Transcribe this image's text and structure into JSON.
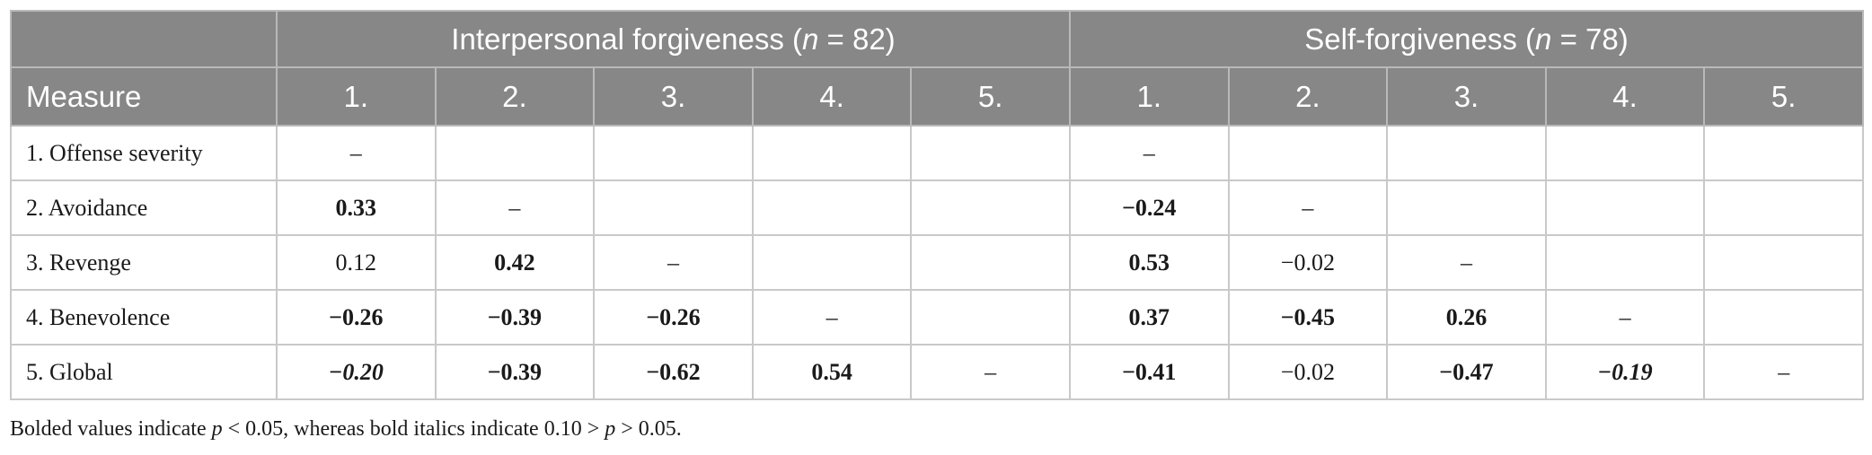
{
  "table": {
    "groups": [
      {
        "label_prefix": "Interpersonal forgiveness (",
        "n_symbol": "n",
        "label_suffix": " = 82)"
      },
      {
        "label_prefix": "Self-forgiveness (",
        "n_symbol": "n",
        "label_suffix": " = 78)"
      }
    ],
    "columns": [
      "Measure",
      "1.",
      "2.",
      "3.",
      "4.",
      "5.",
      "1.",
      "2.",
      "3.",
      "4.",
      "5."
    ],
    "rows": [
      {
        "label": "1. Offense severity",
        "cells": [
          {
            "v": "–",
            "s": ""
          },
          {
            "v": "",
            "s": ""
          },
          {
            "v": "",
            "s": ""
          },
          {
            "v": "",
            "s": ""
          },
          {
            "v": "",
            "s": ""
          },
          {
            "v": "–",
            "s": ""
          },
          {
            "v": "",
            "s": ""
          },
          {
            "v": "",
            "s": ""
          },
          {
            "v": "",
            "s": ""
          },
          {
            "v": "",
            "s": ""
          }
        ]
      },
      {
        "label": "2. Avoidance",
        "cells": [
          {
            "v": "0.33",
            "s": "b"
          },
          {
            "v": "–",
            "s": ""
          },
          {
            "v": "",
            "s": ""
          },
          {
            "v": "",
            "s": ""
          },
          {
            "v": "",
            "s": ""
          },
          {
            "v": "−0.24",
            "s": "b"
          },
          {
            "v": "–",
            "s": ""
          },
          {
            "v": "",
            "s": ""
          },
          {
            "v": "",
            "s": ""
          },
          {
            "v": "",
            "s": ""
          }
        ]
      },
      {
        "label": "3. Revenge",
        "cells": [
          {
            "v": "0.12",
            "s": ""
          },
          {
            "v": "0.42",
            "s": "b"
          },
          {
            "v": "–",
            "s": ""
          },
          {
            "v": "",
            "s": ""
          },
          {
            "v": "",
            "s": ""
          },
          {
            "v": "0.53",
            "s": "b"
          },
          {
            "v": "−0.02",
            "s": ""
          },
          {
            "v": "–",
            "s": ""
          },
          {
            "v": "",
            "s": ""
          },
          {
            "v": "",
            "s": ""
          }
        ]
      },
      {
        "label": "4. Benevolence",
        "cells": [
          {
            "v": "−0.26",
            "s": "b"
          },
          {
            "v": "−0.39",
            "s": "b"
          },
          {
            "v": "−0.26",
            "s": "b"
          },
          {
            "v": "–",
            "s": ""
          },
          {
            "v": "",
            "s": ""
          },
          {
            "v": "0.37",
            "s": "b"
          },
          {
            "v": "−0.45",
            "s": "b"
          },
          {
            "v": "0.26",
            "s": "b"
          },
          {
            "v": "–",
            "s": ""
          },
          {
            "v": "",
            "s": ""
          }
        ]
      },
      {
        "label": "5. Global",
        "cells": [
          {
            "v": "−0.20",
            "s": "bi"
          },
          {
            "v": "−0.39",
            "s": "b"
          },
          {
            "v": "−0.62",
            "s": "b"
          },
          {
            "v": "0.54",
            "s": "b"
          },
          {
            "v": "–",
            "s": ""
          },
          {
            "v": "−0.41",
            "s": "b"
          },
          {
            "v": "−0.02",
            "s": ""
          },
          {
            "v": "−0.47",
            "s": "b"
          },
          {
            "v": "−0.19",
            "s": "bi"
          },
          {
            "v": "–",
            "s": ""
          }
        ]
      }
    ]
  },
  "note": {
    "part1": "Bolded values indicate ",
    "p1": "p",
    "part2": " < 0.05, whereas bold italics indicate 0.10 > ",
    "p2": "p",
    "part3": " > 0.05."
  },
  "colors": {
    "header_bg": "#878787",
    "header_text": "#ffffff",
    "grid": "#c9c9c9"
  }
}
